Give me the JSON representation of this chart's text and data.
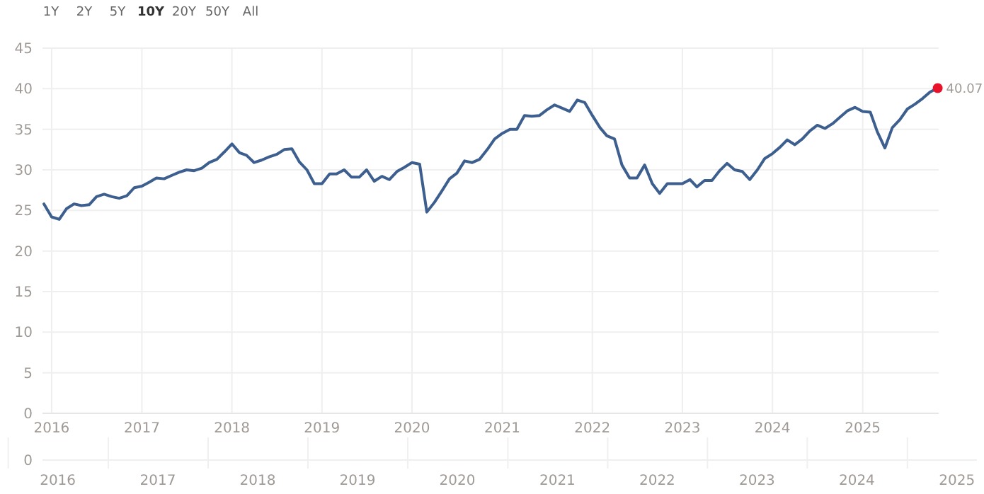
{
  "chart_data": {
    "type": "line",
    "x": [
      "2015-12",
      "2016-01",
      "2016-02",
      "2016-03",
      "2016-04",
      "2016-05",
      "2016-06",
      "2016-07",
      "2016-08",
      "2016-09",
      "2016-10",
      "2016-11",
      "2016-12",
      "2017-01",
      "2017-02",
      "2017-03",
      "2017-04",
      "2017-05",
      "2017-06",
      "2017-07",
      "2017-08",
      "2017-09",
      "2017-10",
      "2017-11",
      "2017-12",
      "2018-01",
      "2018-02",
      "2018-03",
      "2018-04",
      "2018-05",
      "2018-06",
      "2018-07",
      "2018-08",
      "2018-09",
      "2018-10",
      "2018-11",
      "2018-12",
      "2019-01",
      "2019-02",
      "2019-03",
      "2019-04",
      "2019-05",
      "2019-06",
      "2019-07",
      "2019-08",
      "2019-09",
      "2019-10",
      "2019-11",
      "2019-12",
      "2020-01",
      "2020-02",
      "2020-03",
      "2020-04",
      "2020-05",
      "2020-06",
      "2020-07",
      "2020-08",
      "2020-09",
      "2020-10",
      "2020-11",
      "2020-12",
      "2021-01",
      "2021-02",
      "2021-03",
      "2021-04",
      "2021-05",
      "2021-06",
      "2021-07",
      "2021-08",
      "2021-09",
      "2021-10",
      "2021-11",
      "2021-12",
      "2022-01",
      "2022-02",
      "2022-03",
      "2022-04",
      "2022-05",
      "2022-06",
      "2022-07",
      "2022-08",
      "2022-09",
      "2022-10",
      "2022-11",
      "2022-12",
      "2023-01",
      "2023-02",
      "2023-03",
      "2023-04",
      "2023-05",
      "2023-06",
      "2023-07",
      "2023-08",
      "2023-09",
      "2023-10",
      "2023-11",
      "2023-12",
      "2024-01",
      "2024-02",
      "2024-03",
      "2024-04",
      "2024-05",
      "2024-06",
      "2024-07",
      "2024-08",
      "2024-09",
      "2024-10",
      "2024-11",
      "2024-12",
      "2025-01",
      "2025-02",
      "2025-03",
      "2025-04",
      "2025-05",
      "2025-06",
      "2025-07",
      "2025-08",
      "2025-09",
      "2025-10",
      "2025-11"
    ],
    "series": [
      {
        "color": "#3d5f8f",
        "values": [
          25.8,
          24.2,
          23.9,
          25.2,
          25.8,
          25.6,
          25.7,
          26.7,
          27.0,
          26.7,
          26.5,
          26.8,
          27.8,
          28.0,
          28.5,
          29.0,
          28.9,
          29.3,
          29.7,
          30.0,
          29.9,
          30.2,
          30.9,
          31.3,
          32.2,
          33.2,
          32.1,
          31.8,
          30.9,
          31.2,
          31.6,
          31.9,
          32.5,
          32.6,
          31.0,
          30.0,
          28.3,
          28.3,
          29.5,
          29.5,
          30.0,
          29.1,
          29.1,
          30.0,
          28.6,
          29.2,
          28.8,
          29.8,
          30.3,
          30.9,
          30.7,
          24.8,
          26.0,
          27.4,
          28.9,
          29.6,
          31.1,
          30.9,
          31.3,
          32.5,
          33.8,
          34.5,
          35.0,
          35.0,
          36.7,
          36.6,
          36.7,
          37.4,
          38.0,
          37.6,
          37.2,
          38.6,
          38.3,
          36.7,
          35.2,
          34.2,
          33.8,
          30.6,
          29.0,
          29.0,
          30.6,
          28.3,
          27.1,
          28.3,
          28.3,
          28.3,
          28.8,
          27.9,
          28.7,
          28.7,
          29.9,
          30.8,
          30.0,
          29.8,
          28.8,
          30.0,
          31.4,
          32.0,
          32.8,
          33.7,
          33.1,
          33.8,
          34.8,
          35.5,
          35.1,
          35.7,
          36.5,
          37.3,
          37.7,
          37.2,
          37.1,
          34.7,
          32.7,
          35.2,
          36.2,
          37.5,
          38.1,
          38.8,
          39.6,
          40.07
        ]
      },
      {
        "type": "scatter",
        "color": "#e8132b",
        "x": [
          "2025-11"
        ],
        "values": [
          40.07
        ],
        "value_labels": [
          "40.07"
        ]
      }
    ],
    "xlim": [
      "2015-11-25",
      "2025-11-05"
    ],
    "xticks": [
      "2016",
      "2017",
      "2018",
      "2019",
      "2020",
      "2021",
      "2022",
      "2023",
      "2024",
      "2025"
    ],
    "ylim": [
      0,
      45
    ],
    "yticks": [
      0,
      5,
      10,
      15,
      20,
      25,
      30,
      35,
      40,
      45
    ],
    "x2lim": [
      "2015-11-06",
      "2025-03-15"
    ],
    "x2ticks": [
      "2016",
      "2017",
      "2018",
      "2019",
      "2020",
      "2021",
      "2022",
      "2023",
      "2024",
      "2025"
    ],
    "grid": true,
    "annotations": [
      "1Y",
      "2Y",
      "5Y",
      "10Y",
      "20Y",
      "50Y",
      "All",
      "0"
    ]
  }
}
